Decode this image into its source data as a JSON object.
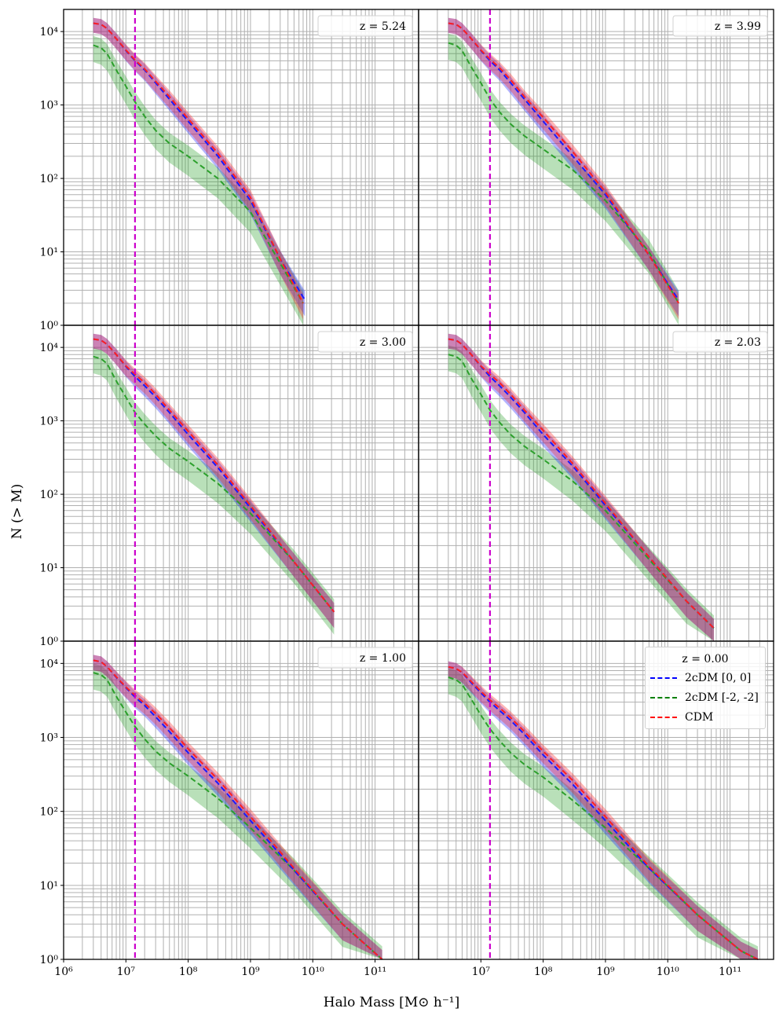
{
  "figure": {
    "xlabel": "Halo Mass [M⊙ h⁻¹]",
    "ylabel": "N (> M)",
    "colors": {
      "blue": "#1a1aff",
      "green": "#2ca02c",
      "red": "#ff2020",
      "magenta": "#cc00cc",
      "grid": "#b0b0b0"
    },
    "legend": {
      "title": "z = 0.00",
      "entries": [
        {
          "label": "2cDM [0, 0]",
          "color": "#0000ff"
        },
        {
          "label": "2cDM [-2, -2]",
          "color": "#008000"
        },
        {
          "label": "CDM",
          "color": "#ff0000"
        }
      ]
    }
  },
  "chart_data": [
    {
      "type": "line",
      "panel": "top-left",
      "title": "z = 5.24",
      "xscale": "log",
      "yscale": "log",
      "xlim": [
        1000000,
        500000000000
      ],
      "ylim": [
        1,
        20000
      ],
      "vline": 14000000,
      "xticks": [
        "10^6",
        "10^7",
        "10^8",
        "10^9",
        "10^10",
        "10^11"
      ],
      "yticks": [
        "10^0",
        "10^1",
        "10^2",
        "10^3",
        "10^4"
      ],
      "series": [
        {
          "name": "2cDM [0, 0]",
          "x": [
            3000000,
            4000000,
            5000000,
            7000000,
            10000000,
            14000000,
            20000000,
            30000000,
            50000000,
            100000000,
            300000000,
            1000000000,
            3000000000,
            7500000000
          ],
          "y": [
            13000,
            12500,
            11000,
            8000,
            5500,
            4000,
            3000,
            2000,
            1200,
            600,
            200,
            50,
            8,
            2.2
          ]
        },
        {
          "name": "2cDM [-2, -2]",
          "x": [
            3000000,
            4000000,
            5000000,
            7000000,
            10000000,
            14000000,
            20000000,
            30000000,
            50000000,
            100000000,
            300000000,
            1000000000,
            3000000000,
            7000000000
          ],
          "y": [
            6500,
            6000,
            5000,
            3000,
            1800,
            1100,
            700,
            450,
            300,
            200,
            100,
            35,
            7,
            2
          ]
        },
        {
          "name": "CDM",
          "x": [
            3000000,
            4000000,
            5000000,
            7000000,
            10000000,
            14000000,
            20000000,
            30000000,
            50000000,
            100000000,
            300000000,
            1000000000,
            3000000000,
            7000000000
          ],
          "y": [
            13000,
            12500,
            11000,
            8000,
            5600,
            4100,
            3100,
            2100,
            1300,
            650,
            220,
            55,
            8,
            2
          ]
        }
      ]
    },
    {
      "type": "line",
      "panel": "top-right",
      "title": "z = 3.99",
      "xscale": "log",
      "yscale": "log",
      "xlim": [
        1000000,
        500000000000
      ],
      "ylim": [
        1,
        20000
      ],
      "vline": 14000000,
      "series": [
        {
          "name": "2cDM [0, 0]",
          "x": [
            3000000,
            4000000,
            5000000,
            7000000,
            10000000,
            14000000,
            20000000,
            30000000,
            50000000,
            100000000,
            300000000,
            1000000000,
            5000000000,
            15000000000
          ],
          "y": [
            13000,
            12500,
            11000,
            8000,
            5500,
            4000,
            3000,
            2000,
            1200,
            600,
            200,
            60,
            9,
            2.2
          ]
        },
        {
          "name": "2cDM [-2, -2]",
          "x": [
            3000000,
            4000000,
            5000000,
            7000000,
            10000000,
            14000000,
            20000000,
            30000000,
            50000000,
            100000000,
            300000000,
            1000000000,
            5000000000,
            15000000000
          ],
          "y": [
            7000,
            6500,
            5500,
            3300,
            2000,
            1200,
            800,
            550,
            380,
            250,
            130,
            50,
            10,
            2
          ]
        },
        {
          "name": "CDM",
          "x": [
            3000000,
            4000000,
            5000000,
            7000000,
            10000000,
            14000000,
            20000000,
            30000000,
            50000000,
            100000000,
            300000000,
            1000000000,
            5000000000,
            15000000000
          ],
          "y": [
            13000,
            12500,
            11000,
            8000,
            5600,
            4200,
            3200,
            2200,
            1300,
            680,
            230,
            65,
            9,
            2
          ]
        }
      ]
    },
    {
      "type": "line",
      "panel": "middle-left",
      "title": "z = 3.00",
      "xscale": "log",
      "yscale": "log",
      "xlim": [
        1000000,
        500000000000
      ],
      "ylim": [
        1,
        20000
      ],
      "vline": 14000000,
      "series": [
        {
          "name": "2cDM [0, 0]",
          "x": [
            3000000,
            4000000,
            5000000,
            7000000,
            10000000,
            14000000,
            20000000,
            30000000,
            50000000,
            100000000,
            300000000,
            1000000000,
            5000000000,
            22000000000
          ],
          "y": [
            13000,
            12500,
            11000,
            8000,
            5500,
            4000,
            3000,
            2100,
            1300,
            650,
            230,
            65,
            12,
            2.5
          ]
        },
        {
          "name": "2cDM [-2, -2]",
          "x": [
            3000000,
            4000000,
            5000000,
            7000000,
            10000000,
            14000000,
            20000000,
            30000000,
            50000000,
            100000000,
            300000000,
            1000000000,
            5000000000,
            22000000000
          ],
          "y": [
            7500,
            7000,
            6000,
            3500,
            2100,
            1300,
            900,
            620,
            420,
            280,
            140,
            55,
            12,
            2.5
          ]
        },
        {
          "name": "CDM",
          "x": [
            3000000,
            4000000,
            5000000,
            7000000,
            10000000,
            14000000,
            20000000,
            30000000,
            50000000,
            100000000,
            300000000,
            1000000000,
            5000000000,
            22000000000
          ],
          "y": [
            13000,
            12500,
            11000,
            8000,
            5600,
            4300,
            3300,
            2300,
            1400,
            720,
            250,
            70,
            12,
            2.5
          ]
        }
      ]
    },
    {
      "type": "line",
      "panel": "middle-right",
      "title": "z = 2.03",
      "xscale": "log",
      "yscale": "log",
      "xlim": [
        1000000,
        500000000000
      ],
      "ylim": [
        1,
        20000
      ],
      "vline": 14000000,
      "series": [
        {
          "name": "2cDM [0, 0]",
          "x": [
            3000000,
            4000000,
            5000000,
            7000000,
            10000000,
            14000000,
            20000000,
            30000000,
            50000000,
            100000000,
            300000000,
            1000000000,
            5000000000,
            20000000000,
            55000000000
          ],
          "y": [
            13000,
            12500,
            11000,
            8000,
            5500,
            4000,
            3000,
            2100,
            1300,
            650,
            240,
            70,
            14,
            3.5,
            1.5
          ]
        },
        {
          "name": "2cDM [-2, -2]",
          "x": [
            3000000,
            4000000,
            5000000,
            7000000,
            10000000,
            14000000,
            20000000,
            30000000,
            50000000,
            100000000,
            300000000,
            1000000000,
            5000000000,
            20000000000,
            55000000000
          ],
          "y": [
            8000,
            7500,
            6500,
            3800,
            2300,
            1400,
            950,
            650,
            450,
            300,
            150,
            60,
            13,
            3.5,
            1.5
          ]
        },
        {
          "name": "CDM",
          "x": [
            3000000,
            4000000,
            5000000,
            7000000,
            10000000,
            14000000,
            20000000,
            30000000,
            50000000,
            100000000,
            300000000,
            1000000000,
            5000000000,
            20000000000,
            55000000000
          ],
          "y": [
            13000,
            12500,
            11000,
            8000,
            5600,
            4300,
            3300,
            2300,
            1400,
            740,
            260,
            75,
            14,
            3.5,
            1.5
          ]
        }
      ]
    },
    {
      "type": "line",
      "panel": "bottom-left",
      "title": "z = 1.00",
      "xscale": "log",
      "yscale": "log",
      "xlim": [
        1000000,
        500000000000
      ],
      "ylim": [
        1,
        20000
      ],
      "vline": 14000000,
      "series": [
        {
          "name": "2cDM [0, 0]",
          "x": [
            3000000,
            4000000,
            5000000,
            7000000,
            10000000,
            14000000,
            20000000,
            30000000,
            50000000,
            100000000,
            300000000,
            1000000000,
            5000000000,
            30000000000,
            130000000000
          ],
          "y": [
            11000,
            10500,
            9000,
            6500,
            4700,
            3500,
            2700,
            1900,
            1200,
            620,
            240,
            75,
            16,
            3,
            1
          ]
        },
        {
          "name": "2cDM [-2, -2]",
          "x": [
            3000000,
            4000000,
            5000000,
            7000000,
            10000000,
            14000000,
            20000000,
            30000000,
            50000000,
            100000000,
            300000000,
            1000000000,
            5000000000,
            30000000000,
            130000000000
          ],
          "y": [
            7500,
            7000,
            6000,
            3600,
            2200,
            1400,
            950,
            650,
            450,
            300,
            150,
            60,
            16,
            3,
            1
          ]
        },
        {
          "name": "CDM",
          "x": [
            3000000,
            4000000,
            5000000,
            7000000,
            10000000,
            14000000,
            20000000,
            30000000,
            50000000,
            100000000,
            300000000,
            1000000000,
            5000000000,
            30000000000,
            130000000000
          ],
          "y": [
            11000,
            10500,
            9000,
            6600,
            4800,
            3700,
            2900,
            2100,
            1350,
            700,
            270,
            85,
            17,
            3,
            1
          ]
        }
      ]
    },
    {
      "type": "line",
      "panel": "bottom-right",
      "title": "z = 0.00",
      "xscale": "log",
      "yscale": "log",
      "xlim": [
        1000000,
        500000000000
      ],
      "ylim": [
        1,
        20000
      ],
      "vline": 14000000,
      "xticks": [
        "10^7",
        "10^8",
        "10^9",
        "10^10",
        "10^11"
      ],
      "series": [
        {
          "name": "2cDM [0, 0]",
          "x": [
            3000000,
            4000000,
            5000000,
            7000000,
            10000000,
            14000000,
            20000000,
            30000000,
            50000000,
            100000000,
            300000000,
            1000000000,
            5000000000,
            30000000000,
            150000000000,
            280000000000
          ],
          "y": [
            9000,
            8500,
            7500,
            5500,
            4000,
            3000,
            2300,
            1700,
            1100,
            580,
            230,
            75,
            17,
            4,
            1.3,
            1
          ]
        },
        {
          "name": "2cDM [-2, -2]",
          "x": [
            3000000,
            4000000,
            5000000,
            7000000,
            10000000,
            14000000,
            20000000,
            30000000,
            50000000,
            100000000,
            300000000,
            1000000000,
            5000000000,
            30000000000,
            150000000000,
            280000000000
          ],
          "y": [
            6500,
            6000,
            5200,
            3300,
            2000,
            1300,
            900,
            620,
            430,
            290,
            140,
            60,
            17,
            4,
            1.3,
            1
          ]
        },
        {
          "name": "CDM",
          "x": [
            3000000,
            4000000,
            5000000,
            7000000,
            10000000,
            14000000,
            20000000,
            30000000,
            50000000,
            100000000,
            300000000,
            1000000000,
            5000000000,
            30000000000,
            150000000000,
            280000000000
          ],
          "y": [
            9000,
            8500,
            7600,
            5700,
            4200,
            3200,
            2500,
            1850,
            1200,
            650,
            260,
            85,
            18,
            4,
            1.3,
            1
          ]
        }
      ]
    }
  ]
}
